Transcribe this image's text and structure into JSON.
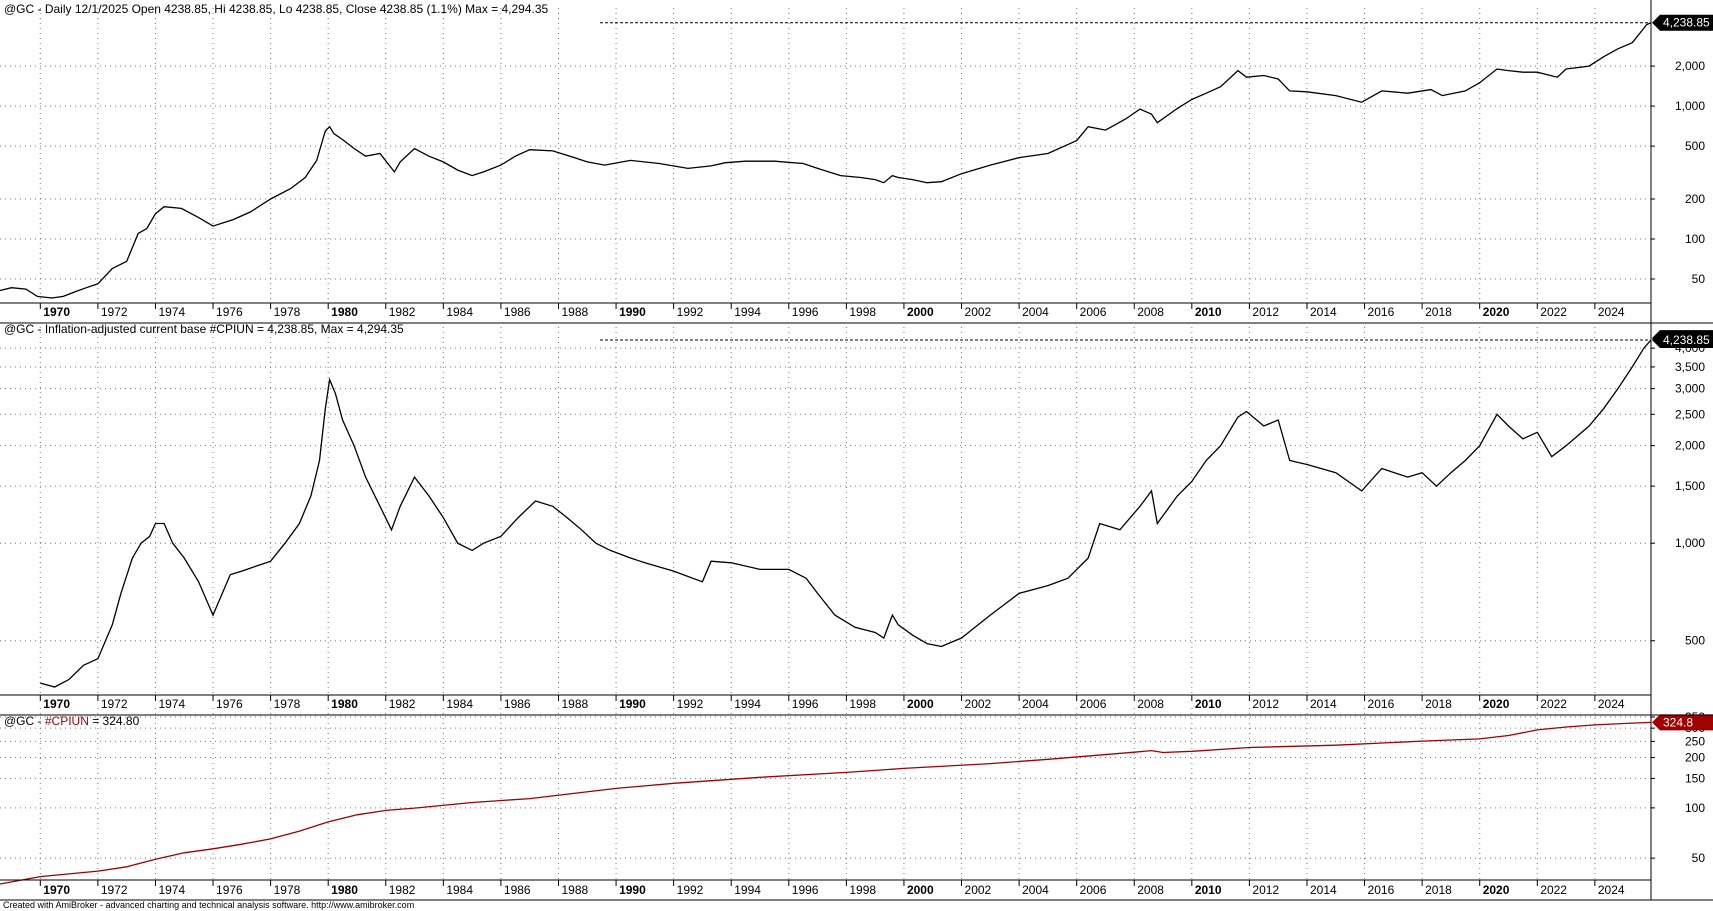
{
  "footer": "Created with AmiBroker - advanced charting and technical analysis software. http://www.amibroker.com",
  "x_axis": {
    "start_year": 1968.6,
    "end_year": 2025.95,
    "labels": [
      "1970",
      "1972",
      "1974",
      "1976",
      "1978",
      "1980",
      "1982",
      "1984",
      "1986",
      "1988",
      "1990",
      "1992",
      "1994",
      "1996",
      "1998",
      "2000",
      "2002",
      "2004",
      "2006",
      "2008",
      "2010",
      "2012",
      "2014",
      "2016",
      "2018",
      "2020",
      "2022",
      "2024"
    ],
    "bold_labels": [
      "1970",
      "1980",
      "1990",
      "2000",
      "2010",
      "2020"
    ]
  },
  "colors": {
    "price_line": "#000000",
    "cpi_line": "#a00000",
    "cpi_badge": "#a00000",
    "price_badge": "#000000",
    "grid": "#777777"
  },
  "chart_data": [
    {
      "type": "line",
      "title": "@GC - Daily 12/1/2025 Open 4238.85, Hi 4238.85, Lo 4238.85, Close 4238.85 (1.1%) Max  = 4,294.35",
      "y_scale": "log",
      "ylim": [
        33,
        4600
      ],
      "y_ticks": [
        "50",
        "100",
        "200",
        "500",
        "1,000",
        "2,000"
      ],
      "y_tick_values": [
        50,
        100,
        200,
        500,
        1000,
        2000
      ],
      "last_value_label": "4,238.85",
      "last_value": 4238.85,
      "series": [
        {
          "x": [
            1968.6,
            1969.0,
            1969.5,
            1969.9,
            1970.4,
            1970.8,
            1971.2,
            1971.6,
            1972.0,
            1972.5,
            1973.0,
            1973.4,
            1973.7,
            1974.0,
            1974.3,
            1974.9,
            1975.5,
            1976.0,
            1976.7,
            1977.3,
            1978.0,
            1978.7,
            1979.2,
            1979.6,
            1979.9,
            1980.05,
            1980.2,
            1980.5,
            1980.9,
            1981.3,
            1981.8,
            1982.3,
            1982.5,
            1983.0,
            1983.5,
            1984.0,
            1984.5,
            1985.0,
            1985.4,
            1986.0,
            1986.5,
            1987.0,
            1987.8,
            1988.4,
            1989.0,
            1989.6,
            1990.5,
            1991.5,
            1992.5,
            1993.3,
            1993.8,
            1994.5,
            1995.5,
            1996.5,
            1997.0,
            1997.8,
            1998.5,
            1999.0,
            1999.3,
            1999.6,
            1999.8,
            2000.3,
            2000.8,
            2001.3,
            2002.0,
            2003.0,
            2004.0,
            2005.0,
            2006.0,
            2006.4,
            2007.0,
            2007.7,
            2008.2,
            2008.6,
            2008.8,
            2009.5,
            2010.0,
            2010.5,
            2011.0,
            2011.6,
            2011.9,
            2012.5,
            2013.0,
            2013.4,
            2014.0,
            2015.0,
            2015.9,
            2016.6,
            2017.5,
            2018.3,
            2018.7,
            2019.5,
            2020.0,
            2020.6,
            2021.0,
            2021.5,
            2022.0,
            2022.7,
            2023.0,
            2023.8,
            2024.3,
            2024.8,
            2025.3,
            2025.8,
            2025.95
          ],
          "values": [
            41,
            43,
            42,
            37,
            36,
            37,
            40,
            43,
            46,
            60,
            68,
            110,
            120,
            155,
            175,
            170,
            145,
            125,
            140,
            160,
            200,
            240,
            290,
            390,
            650,
            700,
            620,
            560,
            480,
            420,
            440,
            320,
            380,
            480,
            420,
            380,
            330,
            300,
            320,
            360,
            420,
            470,
            460,
            420,
            380,
            360,
            390,
            370,
            340,
            355,
            375,
            385,
            385,
            370,
            340,
            300,
            290,
            280,
            265,
            300,
            290,
            280,
            265,
            270,
            310,
            360,
            410,
            440,
            550,
            700,
            660,
            800,
            950,
            870,
            750,
            960,
            1120,
            1250,
            1400,
            1850,
            1650,
            1700,
            1600,
            1300,
            1280,
            1200,
            1070,
            1300,
            1250,
            1330,
            1200,
            1300,
            1500,
            1900,
            1850,
            1800,
            1800,
            1650,
            1900,
            2000,
            2350,
            2700,
            3000,
            4100,
            4238.85
          ]
        }
      ]
    },
    {
      "type": "line",
      "title": "@GC - Inflation-adjusted current base #CPIUN = 4,238.85, Max  = 4,294.35",
      "y_scale": "log",
      "ylim": [
        340,
        4330
      ],
      "y_ticks": [
        "500",
        "1,000",
        "1,500",
        "2,000",
        "2,500",
        "3,000",
        "3,500",
        "4,000"
      ],
      "y_tick_values": [
        500,
        1000,
        1500,
        2000,
        2500,
        3000,
        3500,
        4000
      ],
      "max_label": "4,294.35",
      "last_value_label": "4,238.85",
      "last_value": 4238.85,
      "series": [
        {
          "x": [
            1970.0,
            1970.5,
            1971.0,
            1971.5,
            1972.0,
            1972.5,
            1972.8,
            1973.2,
            1973.5,
            1973.8,
            1974.0,
            1974.3,
            1974.6,
            1975.0,
            1975.5,
            1976.0,
            1976.6,
            1977.0,
            1977.5,
            1978.0,
            1978.5,
            1979.0,
            1979.4,
            1979.7,
            1979.9,
            1980.05,
            1980.25,
            1980.5,
            1980.9,
            1981.3,
            1981.8,
            1982.2,
            1982.5,
            1983.0,
            1983.5,
            1984.0,
            1984.5,
            1985.0,
            1985.4,
            1986.0,
            1986.6,
            1987.2,
            1987.8,
            1988.3,
            1988.8,
            1989.3,
            1989.8,
            1990.5,
            1991.0,
            1992.0,
            1993.0,
            1993.3,
            1994.0,
            1995.0,
            1996.0,
            1996.6,
            1997.0,
            1997.6,
            1998.3,
            1999.0,
            1999.3,
            1999.6,
            1999.8,
            2000.3,
            2000.8,
            2001.3,
            2002.0,
            2003.0,
            2004.0,
            2005.0,
            2005.7,
            2006.4,
            2006.8,
            2007.5,
            2008.2,
            2008.6,
            2008.8,
            2009.5,
            2010.0,
            2010.5,
            2011.0,
            2011.6,
            2011.9,
            2012.5,
            2013.0,
            2013.4,
            2014.0,
            2015.0,
            2015.9,
            2016.6,
            2017.5,
            2018.0,
            2018.5,
            2019.0,
            2019.5,
            2020.0,
            2020.6,
            2021.0,
            2021.5,
            2022.0,
            2022.5,
            2023.0,
            2023.8,
            2024.3,
            2024.8,
            2025.3,
            2025.7,
            2025.95
          ],
          "values": [
            370,
            360,
            380,
            420,
            440,
            560,
            700,
            900,
            1000,
            1050,
            1150,
            1150,
            1000,
            900,
            760,
            600,
            800,
            820,
            850,
            880,
            1000,
            1150,
            1400,
            1800,
            2600,
            3200,
            2900,
            2400,
            2000,
            1600,
            1300,
            1100,
            1300,
            1600,
            1400,
            1200,
            1000,
            950,
            1000,
            1050,
            1200,
            1350,
            1300,
            1200,
            1100,
            1000,
            950,
            900,
            870,
            820,
            760,
            880,
            870,
            830,
            830,
            780,
            700,
            600,
            550,
            530,
            510,
            600,
            560,
            520,
            490,
            480,
            510,
            600,
            700,
            740,
            780,
            900,
            1150,
            1100,
            1300,
            1450,
            1150,
            1400,
            1550,
            1800,
            2000,
            2450,
            2550,
            2300,
            2400,
            1800,
            1750,
            1650,
            1450,
            1700,
            1600,
            1650,
            1500,
            1650,
            1800,
            2000,
            2500,
            2300,
            2100,
            2200,
            1850,
            2000,
            2300,
            2600,
            3000,
            3500,
            4000,
            4238.85
          ]
        }
      ]
    },
    {
      "type": "line",
      "title": "@GC - #CPIUN = 324.80",
      "title_prefix": "@GC - ",
      "title_series": "#CPIUN",
      "title_value": " = 324.80",
      "y_scale": "log",
      "ylim": [
        37,
        345
      ],
      "y_ticks": [
        "50",
        "100",
        "150",
        "200",
        "250",
        "300",
        "350"
      ],
      "y_tick_values": [
        50,
        100,
        150,
        200,
        250,
        300,
        350
      ],
      "last_value_label": "324.8",
      "last_value": 324.8,
      "series": [
        {
          "name": "#CPIUN",
          "x": [
            1968.6,
            1970,
            1972,
            1973,
            1974,
            1975,
            1976,
            1977,
            1978,
            1979,
            1980,
            1981,
            1982,
            1983,
            1985,
            1987,
            1990,
            1992,
            1995,
            1998,
            2000,
            2003,
            2005,
            2008,
            2008.6,
            2009,
            2010,
            2012,
            2015,
            2018,
            2020,
            2021,
            2022,
            2023,
            2024,
            2025,
            2025.95
          ],
          "values": [
            35,
            38.8,
            41.8,
            44.4,
            49.3,
            53.8,
            56.9,
            60.6,
            65.2,
            72.6,
            82.4,
            90.9,
            96.5,
            99.6,
            107.6,
            113.6,
            130.7,
            140.3,
            152.4,
            163.0,
            172.2,
            184.0,
            195.3,
            215.3,
            220.0,
            214.5,
            218.1,
            229.6,
            237.0,
            251.1,
            258.8,
            271.0,
            292.7,
            304.7,
            313.7,
            320.0,
            324.8
          ]
        }
      ]
    }
  ]
}
